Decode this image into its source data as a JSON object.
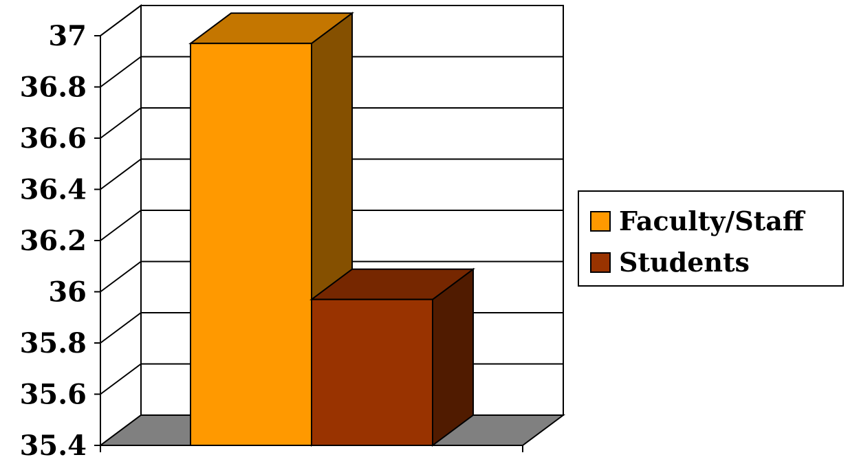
{
  "chart_data": {
    "type": "bar",
    "categories": [
      ""
    ],
    "series": [
      {
        "name": "Faculty/Staff",
        "values": [
          36.97
        ],
        "color": "#FF9900"
      },
      {
        "name": "Students",
        "values": [
          35.97
        ],
        "color": "#993300"
      }
    ],
    "ylim": [
      35.4,
      37
    ],
    "yticks": [
      "35.4",
      "35.6",
      "35.8",
      "36",
      "36.2",
      "36.4",
      "36.6",
      "36.8",
      "37"
    ],
    "grid": true,
    "legend_position": "right",
    "floor_color": "#808080"
  }
}
